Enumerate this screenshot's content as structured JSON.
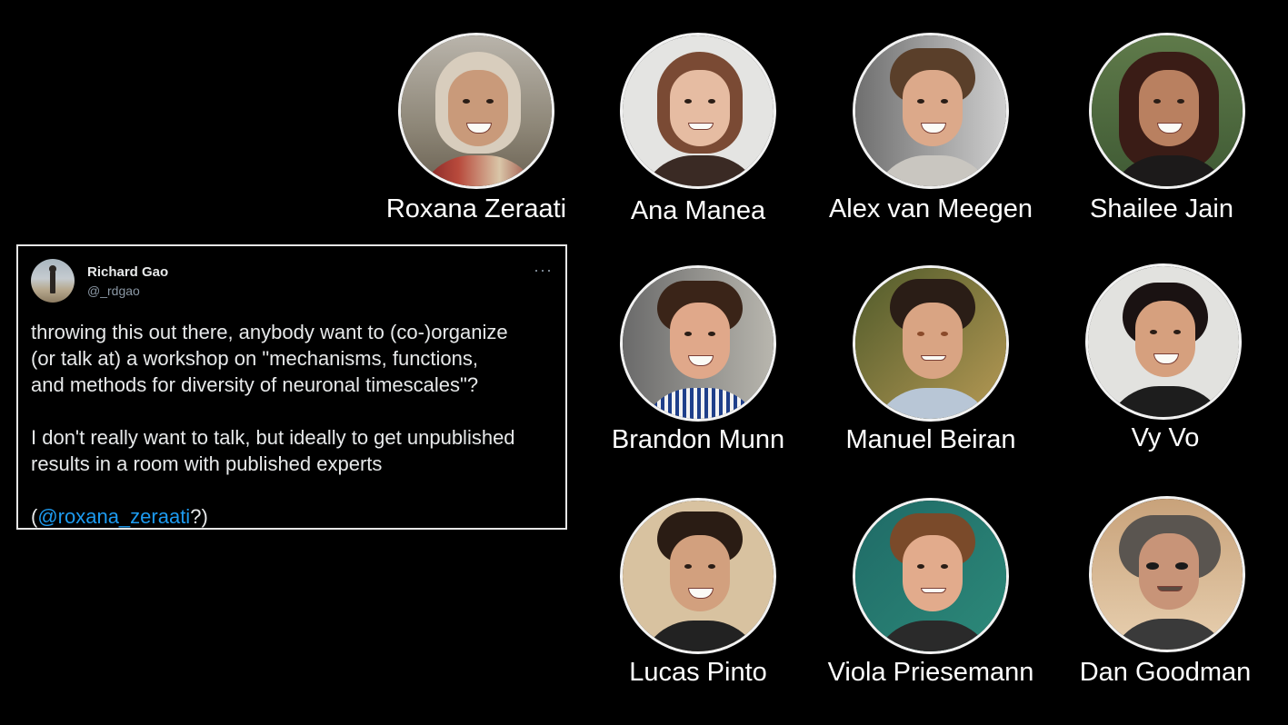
{
  "tweet": {
    "author_name": "Richard Gao",
    "author_handle": "@_rdgao",
    "more_icon": "···",
    "paragraph_1": "throwing this out there, anybody want to (co-)organize\n(or talk at) a workshop on \"mechanisms, functions,\nand methods for diversity of neuronal timescales\"?",
    "paragraph_2": "I don't really want to talk, but ideally to get unpublished\nresults in a room with published experts",
    "paragraph_3_open": "(",
    "paragraph_3_mention": "@roxana_zeraati",
    "paragraph_3_close": "?)",
    "mention_color": "#1d9bf0"
  },
  "people": [
    {
      "name": "Roxana Zeraati"
    },
    {
      "name": "Ana Manea"
    },
    {
      "name": "Alex van Meegen"
    },
    {
      "name": "Shailee Jain"
    },
    {
      "name": "Brandon Munn"
    },
    {
      "name": "Manuel Beiran"
    },
    {
      "name": "Vy Vo"
    },
    {
      "name": "Lucas Pinto"
    },
    {
      "name": "Viola Priesemann"
    },
    {
      "name": "Dan Goodman"
    }
  ]
}
